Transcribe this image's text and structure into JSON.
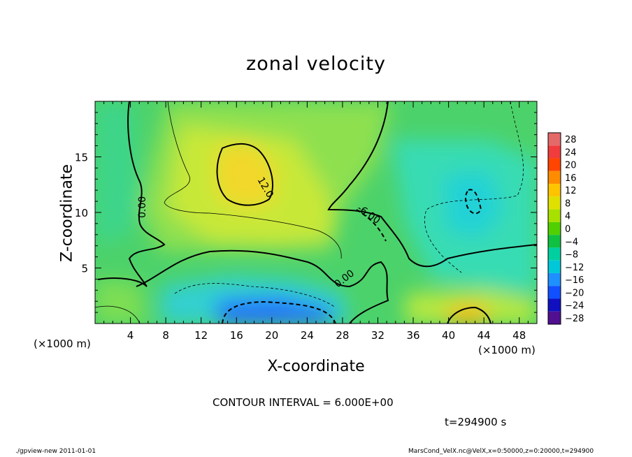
{
  "chart_data": {
    "type": "heatmap",
    "title": "zonal velocity",
    "xlabel": "X-coordinate",
    "ylabel": "Z-coordinate",
    "x_unit_left": "(×1000 m)",
    "x_unit_right": "(×1000 m)",
    "xlim": [
      0,
      50
    ],
    "ylim": [
      0,
      20
    ],
    "x_ticks": [
      4,
      8,
      12,
      16,
      20,
      24,
      28,
      32,
      36,
      40,
      44,
      48
    ],
    "y_ticks": [
      5,
      10,
      15
    ],
    "colorbar": {
      "levels": [
        28,
        24,
        20,
        16,
        12,
        8,
        4,
        0,
        -4,
        -8,
        -12,
        -16,
        -20,
        -24,
        -28
      ],
      "labels": [
        "28",
        "24",
        "20",
        "16",
        "12",
        "8",
        "4",
        "0",
        "−4",
        "−8",
        "−12",
        "−16",
        "−20",
        "−24",
        "−28"
      ],
      "colors": [
        "#e46a6a",
        "#f03c3c",
        "#ff4500",
        "#ff8c00",
        "#ffc400",
        "#e0e000",
        "#a8e000",
        "#50d000",
        "#10c040",
        "#00d0a0",
        "#00c8d8",
        "#1e90ff",
        "#1050ff",
        "#1010c0",
        "#501090"
      ]
    },
    "contour_labels": [
      "12.0",
      "0.00",
      "-6.00",
      "0.00"
    ],
    "contour_interval": "CONTOUR INTERVAL = 6.000E+00",
    "time": "t=294900 s"
  },
  "footer": {
    "left": "./gpview-new   2011-01-01",
    "right": "MarsCond_VelX.nc@VelX,x=0:50000,z=0:20000,t=294900"
  }
}
